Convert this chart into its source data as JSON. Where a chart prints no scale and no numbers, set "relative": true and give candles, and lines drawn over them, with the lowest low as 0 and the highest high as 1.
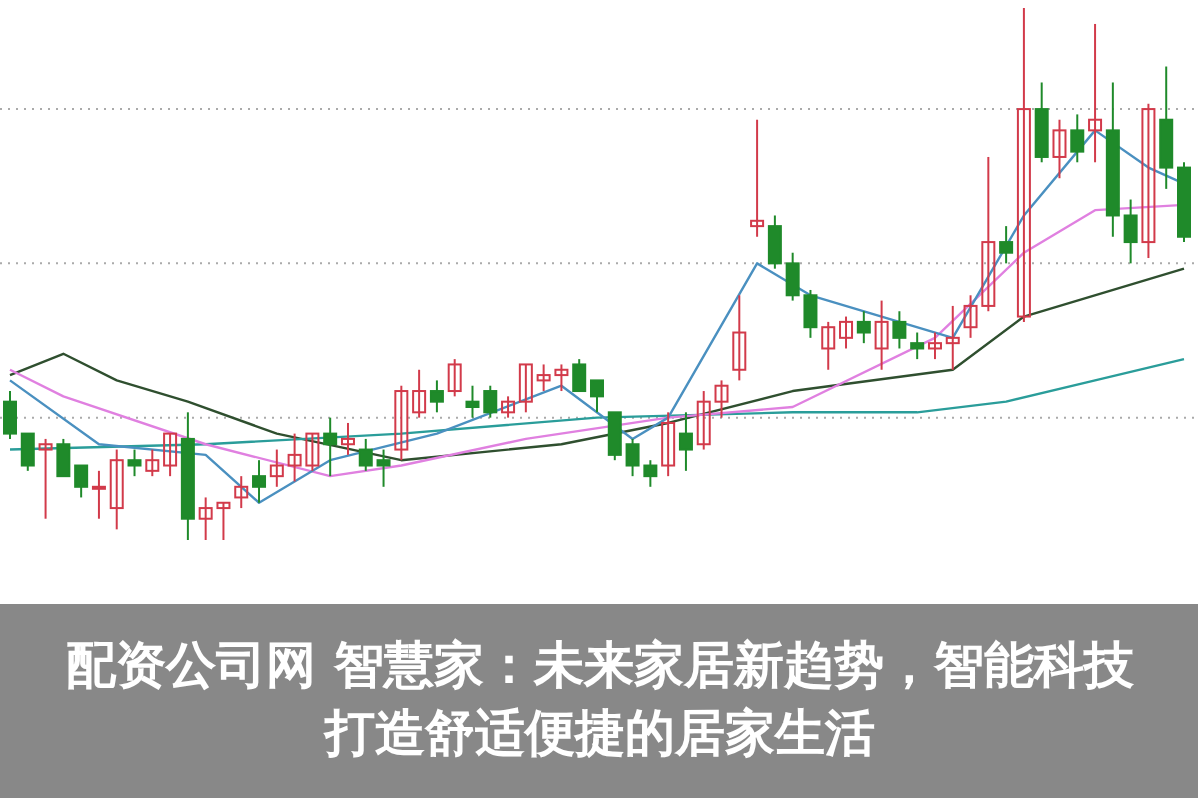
{
  "chart_data": {
    "type": "candlestick",
    "title": "配资公司网 智慧家：未来家居新趋势，智能科技打造舒适便捷的居家生活",
    "relative": true,
    "grid": true,
    "tick_labels": false,
    "categories": [
      null,
      null,
      null,
      null,
      null,
      null,
      null,
      null,
      null,
      null,
      null,
      null,
      null,
      null,
      null,
      null,
      null,
      null,
      null,
      null,
      null,
      null,
      null,
      null,
      null,
      null,
      null,
      null,
      null,
      null,
      null,
      null,
      null,
      null,
      null,
      null,
      null,
      null,
      null,
      null,
      null,
      null,
      null,
      null,
      null,
      null,
      null,
      null,
      null,
      null,
      null,
      null,
      null,
      null,
      null,
      null,
      null,
      null,
      null,
      null,
      null,
      null,
      null,
      null,
      null,
      null,
      null
    ],
    "ohlc": [
      [
        0.26,
        0.28,
        0.19,
        0.2
      ],
      [
        0.2,
        0.2,
        0.13,
        0.14
      ],
      [
        0.17,
        0.19,
        0.04,
        0.18
      ],
      [
        0.18,
        0.19,
        0.12,
        0.12
      ],
      [
        0.14,
        0.14,
        0.08,
        0.1
      ],
      [
        0.1,
        0.13,
        0.04,
        0.1
      ],
      [
        0.06,
        0.17,
        0.02,
        0.15
      ],
      [
        0.15,
        0.17,
        0.12,
        0.14
      ],
      [
        0.13,
        0.17,
        0.12,
        0.15
      ],
      [
        0.14,
        0.2,
        0.12,
        0.2
      ],
      [
        0.19,
        0.24,
        0,
        0.04
      ],
      [
        0.04,
        0.08,
        0,
        0.06
      ],
      [
        0.06,
        0.07,
        0,
        0.07
      ],
      [
        0.08,
        0.12,
        0.06,
        0.1
      ],
      [
        0.12,
        0.15,
        0.07,
        0.1
      ],
      [
        0.12,
        0.17,
        0.1,
        0.14
      ],
      [
        0.14,
        0.2,
        0.11,
        0.16
      ],
      [
        0.14,
        0.2,
        0.13,
        0.2
      ],
      [
        0.2,
        0.23,
        0.12,
        0.18
      ],
      [
        0.18,
        0.22,
        0.16,
        0.19
      ],
      [
        0.17,
        0.19,
        0.13,
        0.14
      ],
      [
        0.15,
        0.17,
        0.1,
        0.14
      ],
      [
        0.17,
        0.29,
        0.15,
        0.28
      ],
      [
        0.24,
        0.32,
        0.23,
        0.28
      ],
      [
        0.28,
        0.3,
        0.24,
        0.26
      ],
      [
        0.28,
        0.34,
        0.27,
        0.33
      ],
      [
        0.26,
        0.29,
        0.23,
        0.25
      ],
      [
        0.28,
        0.29,
        0.23,
        0.24
      ],
      [
        0.24,
        0.27,
        0.23,
        0.26
      ],
      [
        0.26,
        0.33,
        0.24,
        0.33
      ],
      [
        0.3,
        0.33,
        0.28,
        0.31
      ],
      [
        0.31,
        0.33,
        0.28,
        0.32
      ],
      [
        0.33,
        0.34,
        0.28,
        0.28
      ],
      [
        0.3,
        0.3,
        0.24,
        0.27
      ],
      [
        0.24,
        0.24,
        0.15,
        0.16
      ],
      [
        0.18,
        0.19,
        0.12,
        0.14
      ],
      [
        0.14,
        0.15,
        0.1,
        0.12
      ],
      [
        0.14,
        0.24,
        0.12,
        0.22
      ],
      [
        0.2,
        0.24,
        0.13,
        0.17
      ],
      [
        0.18,
        0.28,
        0.17,
        0.26
      ],
      [
        0.26,
        0.3,
        0.23,
        0.29
      ],
      [
        0.32,
        0.46,
        0.3,
        0.39
      ],
      [
        0.59,
        0.79,
        0.57,
        0.6
      ],
      [
        0.59,
        0.61,
        0.51,
        0.52
      ],
      [
        0.52,
        0.54,
        0.45,
        0.46
      ],
      [
        0.46,
        0.47,
        0.38,
        0.4
      ],
      [
        0.36,
        0.41,
        0.32,
        0.4
      ],
      [
        0.38,
        0.42,
        0.36,
        0.41
      ],
      [
        0.41,
        0.43,
        0.37,
        0.39
      ],
      [
        0.36,
        0.45,
        0.32,
        0.41
      ],
      [
        0.41,
        0.43,
        0.36,
        0.38
      ],
      [
        0.37,
        0.39,
        0.34,
        0.36
      ],
      [
        0.36,
        0.39,
        0.34,
        0.37
      ],
      [
        0.37,
        0.44,
        0.32,
        0.38
      ],
      [
        0.4,
        0.46,
        0.38,
        0.44
      ],
      [
        0.44,
        0.72,
        0.43,
        0.56
      ],
      [
        0.56,
        0.59,
        0.52,
        0.54
      ],
      [
        0.42,
        1,
        0.41,
        0.81
      ],
      [
        0.81,
        0.86,
        0.71,
        0.72
      ],
      [
        0.72,
        0.79,
        0.68,
        0.77
      ],
      [
        0.77,
        0.8,
        0.71,
        0.73
      ],
      [
        0.77,
        0.97,
        0.71,
        0.79
      ],
      [
        0.77,
        0.86,
        0.57,
        0.61
      ],
      [
        0.61,
        0.64,
        0.52,
        0.56
      ],
      [
        0.56,
        0.82,
        0.53,
        0.81
      ],
      [
        0.79,
        0.89,
        0.66,
        0.7
      ],
      [
        0.7,
        0.71,
        0.56,
        0.57
      ]
    ],
    "series": [
      {
        "type": "line",
        "color": "#2f4f2f",
        "values": [
          0.31,
          null,
          null,
          0.35,
          null,
          null,
          0.3,
          null,
          null,
          null,
          0.26,
          null,
          null,
          null,
          null,
          0.2,
          null,
          null,
          null,
          null,
          null,
          null,
          0.15,
          null,
          null,
          null,
          null,
          null,
          null,
          null,
          null,
          0.18,
          null,
          null,
          null,
          null,
          null,
          0.22,
          null,
          null,
          null,
          null,
          null,
          null,
          0.28,
          null,
          null,
          null,
          null,
          null,
          null,
          null,
          null,
          0.32,
          null,
          null,
          null,
          0.42,
          null,
          null,
          null,
          null,
          null,
          null,
          null,
          null,
          0.51
        ]
      },
      {
        "type": "line",
        "color": "#2a9d9a",
        "values": [
          0.17,
          null,
          null,
          null,
          null,
          null,
          null,
          null,
          null,
          null,
          null,
          0.18,
          null,
          null,
          null,
          null,
          null,
          null,
          null,
          null,
          null,
          null,
          0.2,
          null,
          null,
          null,
          null,
          null,
          null,
          null,
          null,
          null,
          null,
          0.23,
          null,
          null,
          null,
          null,
          null,
          null,
          null,
          null,
          null,
          null,
          0.24,
          null,
          null,
          null,
          null,
          null,
          null,
          0.24,
          null,
          null,
          null,
          null,
          0.26,
          null,
          null,
          null,
          null,
          0.3,
          null,
          null,
          null,
          null,
          0.34
        ]
      },
      {
        "type": "line",
        "color": "#e080e0",
        "values": [
          0.32,
          null,
          null,
          0.27,
          null,
          null,
          null,
          null,
          null,
          null,
          null,
          0.18,
          null,
          null,
          null,
          null,
          null,
          null,
          0.12,
          null,
          null,
          null,
          0.14,
          null,
          null,
          null,
          null,
          null,
          null,
          0.19,
          null,
          null,
          null,
          null,
          null,
          null,
          null,
          0.23,
          null,
          null,
          null,
          null,
          null,
          null,
          0.25,
          null,
          null,
          null,
          null,
          null,
          null,
          null,
          0.38,
          null,
          null,
          null,
          null,
          0.54,
          null,
          null,
          null,
          0.62,
          null,
          null,
          null,
          null,
          0.63
        ]
      },
      {
        "type": "line",
        "color": "#4a90c0",
        "values": [
          0.3,
          null,
          null,
          null,
          null,
          0.18,
          null,
          null,
          null,
          null,
          null,
          0.16,
          null,
          null,
          0.07,
          null,
          null,
          null,
          0.15,
          null,
          null,
          null,
          null,
          null,
          0.2,
          null,
          null,
          null,
          null,
          null,
          null,
          0.29,
          null,
          null,
          null,
          0.19,
          null,
          0.23,
          null,
          null,
          null,
          null,
          0.52,
          null,
          null,
          0.46,
          null,
          null,
          null,
          null,
          null,
          null,
          null,
          0.38,
          null,
          null,
          null,
          0.61,
          null,
          null,
          null,
          0.77,
          null,
          null,
          0.7,
          null,
          0.67
        ]
      }
    ]
  }
}
